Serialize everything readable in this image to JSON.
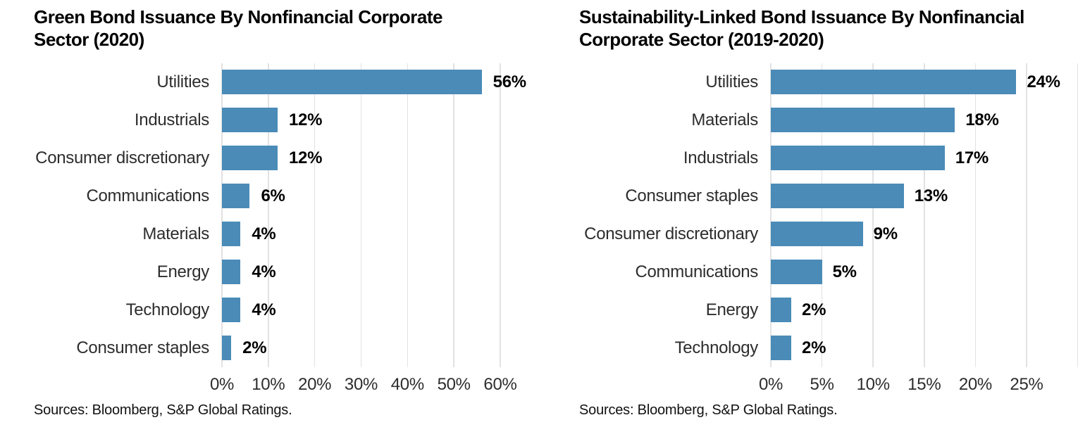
{
  "colors": {
    "bar": "#4a8bb8",
    "gridline": "#e2e2e2",
    "title": "#000000",
    "category_label": "#2d2d2d",
    "value_label": "#000000",
    "tick_label": "#2d2d2d",
    "source": "#111111",
    "background": "#ffffff"
  },
  "chart_data": [
    {
      "type": "bar",
      "orientation": "horizontal",
      "title": "Green Bond Issuance By Nonfinancial Corporate Sector (2020)",
      "title_lines": [
        "Green Bond Issuance By Nonfinancial Corporate",
        "Sector (2020)"
      ],
      "categories": [
        "Utilities",
        "Industrials",
        "Consumer discretionary",
        "Communications",
        "Materials",
        "Energy",
        "Technology",
        "Consumer staples"
      ],
      "values": [
        56,
        12,
        12,
        6,
        4,
        4,
        4,
        2
      ],
      "value_labels": [
        "56%",
        "12%",
        "12%",
        "6%",
        "4%",
        "4%",
        "4%",
        "2%"
      ],
      "x_ticks": [
        0,
        10,
        20,
        30,
        40,
        50,
        60
      ],
      "x_tick_labels": [
        "0%",
        "10%",
        "20%",
        "30%",
        "40%",
        "50%",
        "60%"
      ],
      "xlim": [
        0,
        66
      ],
      "grid": true,
      "legend": false,
      "source": "Sources: Bloomberg, S&P Global Ratings."
    },
    {
      "type": "bar",
      "orientation": "horizontal",
      "title": "Sustainability-Linked Bond Issuance By Nonfinancial Corporate Sector (2019-2020)",
      "title_lines": [
        "Sustainability-Linked Bond Issuance By Nonfinancial",
        "Corporate Sector (2019-2020)"
      ],
      "categories": [
        "Utilities",
        "Materials",
        "Industrials",
        "Consumer staples",
        "Consumer discretionary",
        "Communications",
        "Energy",
        "Technology"
      ],
      "values": [
        24,
        18,
        17,
        13,
        9,
        5,
        2,
        2
      ],
      "value_labels": [
        "24%",
        "18%",
        "17%",
        "13%",
        "9%",
        "5%",
        "2%",
        "2%"
      ],
      "x_ticks": [
        0,
        5,
        10,
        15,
        20,
        25
      ],
      "x_tick_labels": [
        "0%",
        "5%",
        "10%",
        "15%",
        "20%",
        "25%"
      ],
      "xlim": [
        0,
        30
      ],
      "grid": true,
      "legend": false,
      "source": "Sources: Bloomberg, S&P Global Ratings."
    }
  ]
}
